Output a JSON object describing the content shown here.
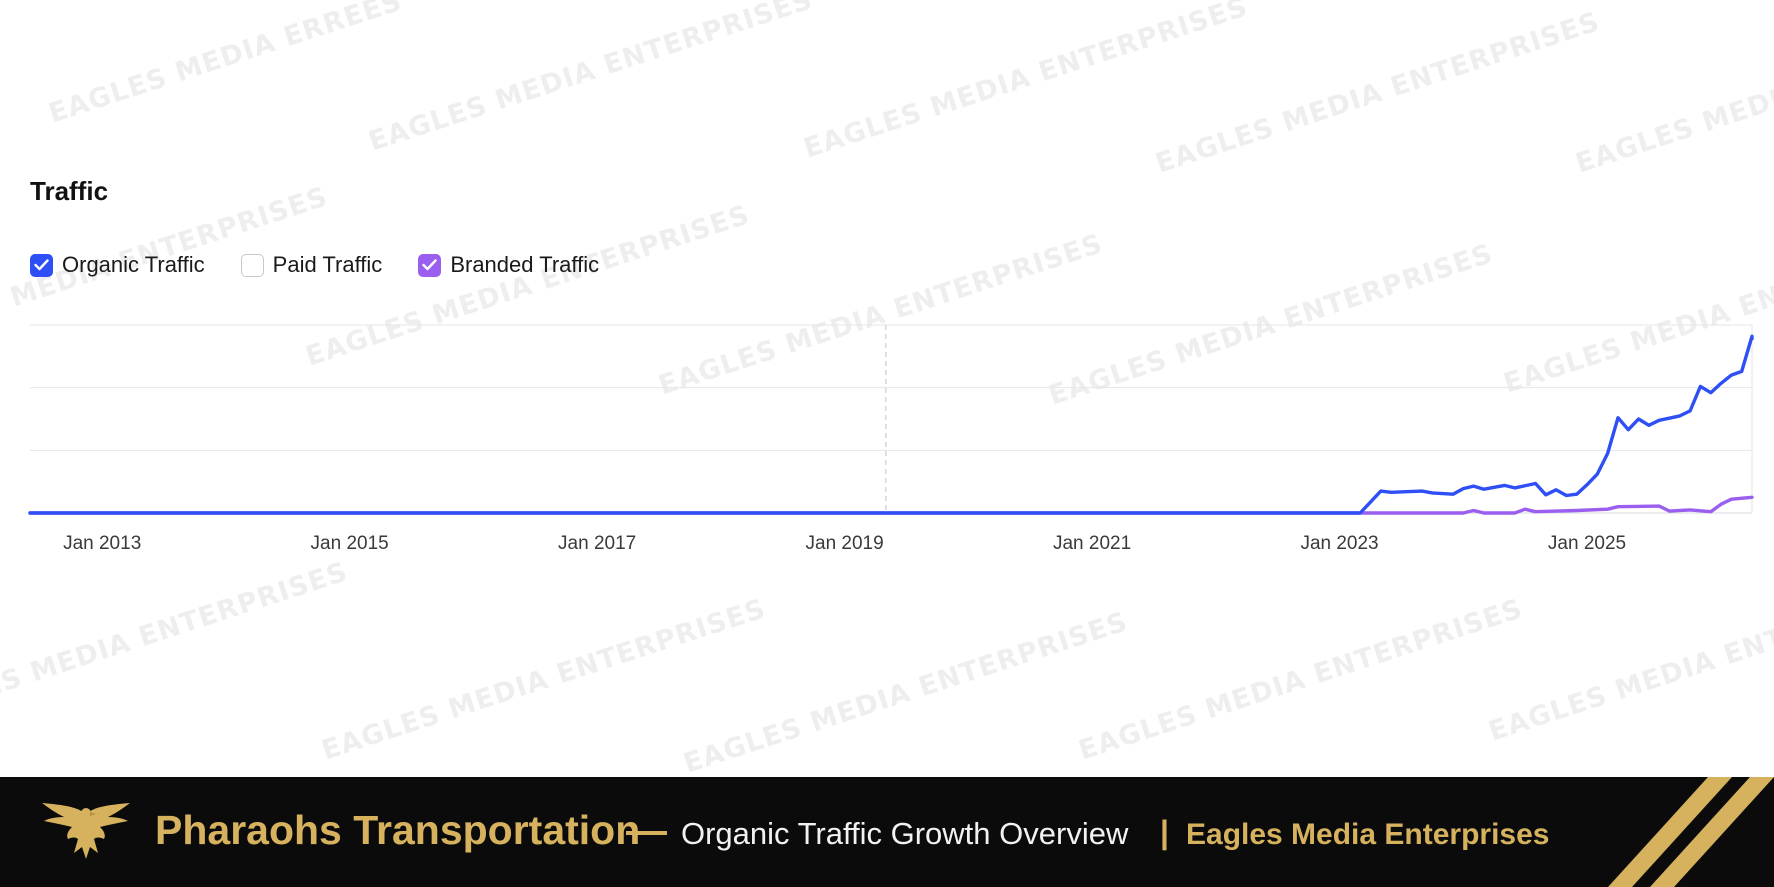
{
  "watermark": {
    "text": "EAGLES MEDIA ENTERPRISES",
    "corner_text": "EAGLES MEDIA ERREES"
  },
  "section": {
    "title": "Traffic"
  },
  "legend": {
    "items": [
      {
        "label": "Organic Traffic",
        "checked": true,
        "color": "#2d4ff5"
      },
      {
        "label": "Paid Traffic",
        "checked": false,
        "color": "#c6c9d2"
      },
      {
        "label": "Branded Traffic",
        "checked": true,
        "color": "#9b5ff0"
      }
    ]
  },
  "chart_data": {
    "type": "line",
    "title": "Traffic",
    "xlabel": "",
    "ylabel": "",
    "x_ticks": [
      "Jan 2013",
      "Jan 2015",
      "Jan 2017",
      "Jan 2019",
      "Jan 2021",
      "Jan 2023",
      "Jan 2025"
    ],
    "x_range": [
      "2012-06",
      "2026-05"
    ],
    "ylim": [
      0,
      3
    ],
    "y_grid": [
      0,
      1,
      2,
      3
    ],
    "grid": true,
    "y_tick_labels_visible": false,
    "marker_date": "2019-05",
    "series": [
      {
        "name": "Organic Traffic",
        "color": "#2d4ff5",
        "points": [
          [
            "2012-06",
            0
          ],
          [
            "2023-03",
            0
          ],
          [
            "2023-05",
            0.35
          ],
          [
            "2023-06",
            0.33
          ],
          [
            "2023-09",
            0.35
          ],
          [
            "2023-10",
            0.32
          ],
          [
            "2023-12",
            0.3
          ],
          [
            "2024-01",
            0.39
          ],
          [
            "2024-02",
            0.43
          ],
          [
            "2024-03",
            0.38
          ],
          [
            "2024-05",
            0.44
          ],
          [
            "2024-06",
            0.4
          ],
          [
            "2024-08",
            0.47
          ],
          [
            "2024-09",
            0.29
          ],
          [
            "2024-10",
            0.37
          ],
          [
            "2024-11",
            0.28
          ],
          [
            "2024-12",
            0.3
          ],
          [
            "2025-01",
            0.45
          ],
          [
            "2025-02",
            0.62
          ],
          [
            "2025-03",
            0.95
          ],
          [
            "2025-04",
            1.52
          ],
          [
            "2025-05",
            1.33
          ],
          [
            "2025-06",
            1.5
          ],
          [
            "2025-07",
            1.4
          ],
          [
            "2025-08",
            1.48
          ],
          [
            "2025-10",
            1.55
          ],
          [
            "2025-11",
            1.63
          ],
          [
            "2025-12",
            2.02
          ],
          [
            "2026-01",
            1.92
          ],
          [
            "2026-02",
            2.07
          ],
          [
            "2026-03",
            2.2
          ],
          [
            "2026-04",
            2.26
          ],
          [
            "2026-05",
            2.82
          ],
          [
            "2026-05",
            2.78
          ]
        ]
      },
      {
        "name": "Branded Traffic",
        "color": "#9b5ff0",
        "points": [
          [
            "2012-06",
            0
          ],
          [
            "2024-01",
            0
          ],
          [
            "2024-02",
            0.04
          ],
          [
            "2024-03",
            0.0
          ],
          [
            "2024-06",
            0.0
          ],
          [
            "2024-07",
            0.06
          ],
          [
            "2024-08",
            0.02
          ],
          [
            "2024-10",
            0.03
          ],
          [
            "2024-12",
            0.04
          ],
          [
            "2025-03",
            0.06
          ],
          [
            "2025-04",
            0.1
          ],
          [
            "2025-08",
            0.11
          ],
          [
            "2025-09",
            0.03
          ],
          [
            "2025-11",
            0.05
          ],
          [
            "2026-01",
            0.02
          ],
          [
            "2026-02",
            0.14
          ],
          [
            "2026-03",
            0.22
          ],
          [
            "2026-05",
            0.25
          ]
        ]
      }
    ]
  },
  "footer": {
    "title": "Pharaohs Transportation",
    "dash": "—",
    "subtitle": "Organic Traffic Growth Overview",
    "pipe": "|",
    "brand": "Eagles Media Enterprises",
    "logo_icon": "eagle-icon",
    "accent_color": "#d6b25e",
    "background_color": "#0b0b0b"
  }
}
